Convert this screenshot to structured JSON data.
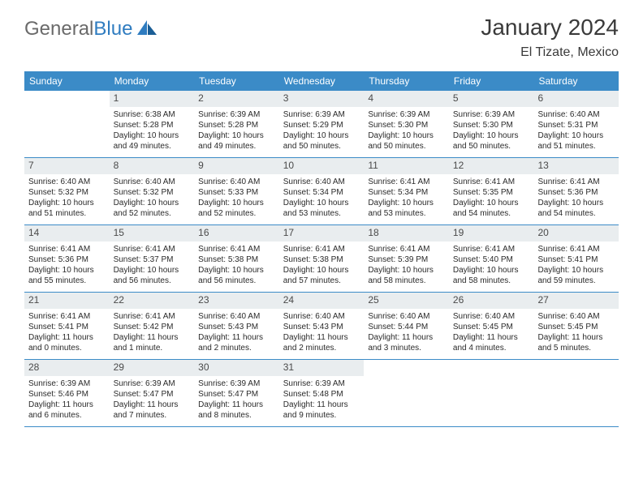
{
  "brand": {
    "part1": "General",
    "part2": "Blue"
  },
  "title": "January 2024",
  "location": "El Tizate, Mexico",
  "colors": {
    "header_bg": "#3b8bc7",
    "header_text": "#ffffff",
    "daynum_bg": "#e9edef",
    "text": "#2a2a2a",
    "border": "#3b8bc7",
    "brand_gray": "#6a6a6a",
    "brand_blue": "#2f7cc0"
  },
  "dayNames": [
    "Sunday",
    "Monday",
    "Tuesday",
    "Wednesday",
    "Thursday",
    "Friday",
    "Saturday"
  ],
  "weeks": [
    [
      {
        "n": "",
        "lines": []
      },
      {
        "n": "1",
        "lines": [
          "Sunrise: 6:38 AM",
          "Sunset: 5:28 PM",
          "Daylight: 10 hours",
          "and 49 minutes."
        ]
      },
      {
        "n": "2",
        "lines": [
          "Sunrise: 6:39 AM",
          "Sunset: 5:28 PM",
          "Daylight: 10 hours",
          "and 49 minutes."
        ]
      },
      {
        "n": "3",
        "lines": [
          "Sunrise: 6:39 AM",
          "Sunset: 5:29 PM",
          "Daylight: 10 hours",
          "and 50 minutes."
        ]
      },
      {
        "n": "4",
        "lines": [
          "Sunrise: 6:39 AM",
          "Sunset: 5:30 PM",
          "Daylight: 10 hours",
          "and 50 minutes."
        ]
      },
      {
        "n": "5",
        "lines": [
          "Sunrise: 6:39 AM",
          "Sunset: 5:30 PM",
          "Daylight: 10 hours",
          "and 50 minutes."
        ]
      },
      {
        "n": "6",
        "lines": [
          "Sunrise: 6:40 AM",
          "Sunset: 5:31 PM",
          "Daylight: 10 hours",
          "and 51 minutes."
        ]
      }
    ],
    [
      {
        "n": "7",
        "lines": [
          "Sunrise: 6:40 AM",
          "Sunset: 5:32 PM",
          "Daylight: 10 hours",
          "and 51 minutes."
        ]
      },
      {
        "n": "8",
        "lines": [
          "Sunrise: 6:40 AM",
          "Sunset: 5:32 PM",
          "Daylight: 10 hours",
          "and 52 minutes."
        ]
      },
      {
        "n": "9",
        "lines": [
          "Sunrise: 6:40 AM",
          "Sunset: 5:33 PM",
          "Daylight: 10 hours",
          "and 52 minutes."
        ]
      },
      {
        "n": "10",
        "lines": [
          "Sunrise: 6:40 AM",
          "Sunset: 5:34 PM",
          "Daylight: 10 hours",
          "and 53 minutes."
        ]
      },
      {
        "n": "11",
        "lines": [
          "Sunrise: 6:41 AM",
          "Sunset: 5:34 PM",
          "Daylight: 10 hours",
          "and 53 minutes."
        ]
      },
      {
        "n": "12",
        "lines": [
          "Sunrise: 6:41 AM",
          "Sunset: 5:35 PM",
          "Daylight: 10 hours",
          "and 54 minutes."
        ]
      },
      {
        "n": "13",
        "lines": [
          "Sunrise: 6:41 AM",
          "Sunset: 5:36 PM",
          "Daylight: 10 hours",
          "and 54 minutes."
        ]
      }
    ],
    [
      {
        "n": "14",
        "lines": [
          "Sunrise: 6:41 AM",
          "Sunset: 5:36 PM",
          "Daylight: 10 hours",
          "and 55 minutes."
        ]
      },
      {
        "n": "15",
        "lines": [
          "Sunrise: 6:41 AM",
          "Sunset: 5:37 PM",
          "Daylight: 10 hours",
          "and 56 minutes."
        ]
      },
      {
        "n": "16",
        "lines": [
          "Sunrise: 6:41 AM",
          "Sunset: 5:38 PM",
          "Daylight: 10 hours",
          "and 56 minutes."
        ]
      },
      {
        "n": "17",
        "lines": [
          "Sunrise: 6:41 AM",
          "Sunset: 5:38 PM",
          "Daylight: 10 hours",
          "and 57 minutes."
        ]
      },
      {
        "n": "18",
        "lines": [
          "Sunrise: 6:41 AM",
          "Sunset: 5:39 PM",
          "Daylight: 10 hours",
          "and 58 minutes."
        ]
      },
      {
        "n": "19",
        "lines": [
          "Sunrise: 6:41 AM",
          "Sunset: 5:40 PM",
          "Daylight: 10 hours",
          "and 58 minutes."
        ]
      },
      {
        "n": "20",
        "lines": [
          "Sunrise: 6:41 AM",
          "Sunset: 5:41 PM",
          "Daylight: 10 hours",
          "and 59 minutes."
        ]
      }
    ],
    [
      {
        "n": "21",
        "lines": [
          "Sunrise: 6:41 AM",
          "Sunset: 5:41 PM",
          "Daylight: 11 hours",
          "and 0 minutes."
        ]
      },
      {
        "n": "22",
        "lines": [
          "Sunrise: 6:41 AM",
          "Sunset: 5:42 PM",
          "Daylight: 11 hours",
          "and 1 minute."
        ]
      },
      {
        "n": "23",
        "lines": [
          "Sunrise: 6:40 AM",
          "Sunset: 5:43 PM",
          "Daylight: 11 hours",
          "and 2 minutes."
        ]
      },
      {
        "n": "24",
        "lines": [
          "Sunrise: 6:40 AM",
          "Sunset: 5:43 PM",
          "Daylight: 11 hours",
          "and 2 minutes."
        ]
      },
      {
        "n": "25",
        "lines": [
          "Sunrise: 6:40 AM",
          "Sunset: 5:44 PM",
          "Daylight: 11 hours",
          "and 3 minutes."
        ]
      },
      {
        "n": "26",
        "lines": [
          "Sunrise: 6:40 AM",
          "Sunset: 5:45 PM",
          "Daylight: 11 hours",
          "and 4 minutes."
        ]
      },
      {
        "n": "27",
        "lines": [
          "Sunrise: 6:40 AM",
          "Sunset: 5:45 PM",
          "Daylight: 11 hours",
          "and 5 minutes."
        ]
      }
    ],
    [
      {
        "n": "28",
        "lines": [
          "Sunrise: 6:39 AM",
          "Sunset: 5:46 PM",
          "Daylight: 11 hours",
          "and 6 minutes."
        ]
      },
      {
        "n": "29",
        "lines": [
          "Sunrise: 6:39 AM",
          "Sunset: 5:47 PM",
          "Daylight: 11 hours",
          "and 7 minutes."
        ]
      },
      {
        "n": "30",
        "lines": [
          "Sunrise: 6:39 AM",
          "Sunset: 5:47 PM",
          "Daylight: 11 hours",
          "and 8 minutes."
        ]
      },
      {
        "n": "31",
        "lines": [
          "Sunrise: 6:39 AM",
          "Sunset: 5:48 PM",
          "Daylight: 11 hours",
          "and 9 minutes."
        ]
      },
      {
        "n": "",
        "lines": []
      },
      {
        "n": "",
        "lines": []
      },
      {
        "n": "",
        "lines": []
      }
    ]
  ]
}
